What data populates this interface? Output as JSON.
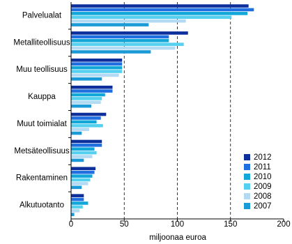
{
  "chart_data": {
    "type": "hbar",
    "categories": [
      "Palvelualat",
      "Metalliteollisuus",
      "Muu teollisuus",
      "Kauppa",
      "Muut toimialat",
      "Metsäteollisuus",
      "Rakentaminen",
      "Alkutuotanto"
    ],
    "series": [
      {
        "name": "2012",
        "color": "#0d2f9c",
        "values": [
          167,
          110,
          48,
          39,
          33,
          29,
          23,
          12
        ]
      },
      {
        "name": "2011",
        "color": "#1f6fe0",
        "values": [
          172,
          92,
          48,
          39,
          28,
          29,
          22,
          12
        ]
      },
      {
        "name": "2010",
        "color": "#12a7d9",
        "values": [
          166,
          92,
          48,
          32,
          24,
          22,
          20,
          16
        ]
      },
      {
        "name": "2009",
        "color": "#55d0ee",
        "values": [
          151,
          106,
          48,
          29,
          30,
          24,
          18,
          11
        ]
      },
      {
        "name": "2008",
        "color": "#b3daf3",
        "values": [
          108,
          98,
          45,
          28,
          17,
          20,
          16,
          8
        ]
      },
      {
        "name": "2007",
        "color": "#1a9ad6",
        "values": [
          73,
          75,
          29,
          19,
          10,
          12,
          10,
          3
        ]
      }
    ],
    "xlabel": "miljoonaa euroa",
    "xlim": [
      0,
      200
    ],
    "xticks": [
      0,
      50,
      100,
      150,
      200
    ],
    "grid": true,
    "legend": "lower right"
  }
}
